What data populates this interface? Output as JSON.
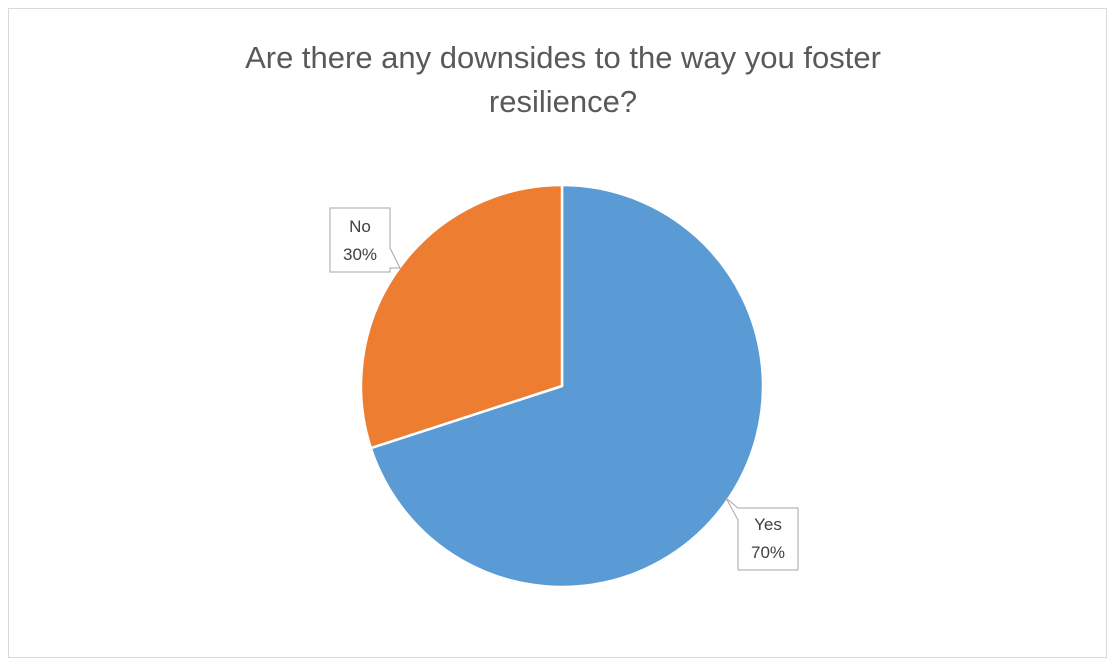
{
  "chart_data": {
    "type": "pie",
    "title_lines": [
      "Are there any downsides to the way you foster",
      "resilience?"
    ],
    "slices": [
      {
        "label": "Yes",
        "value": 70,
        "value_text": "70%",
        "color": "#5b9bd5"
      },
      {
        "label": "No",
        "value": 30,
        "value_text": "30%",
        "color": "#ed7d31"
      }
    ],
    "legend": "none",
    "data_labels": "callout"
  }
}
